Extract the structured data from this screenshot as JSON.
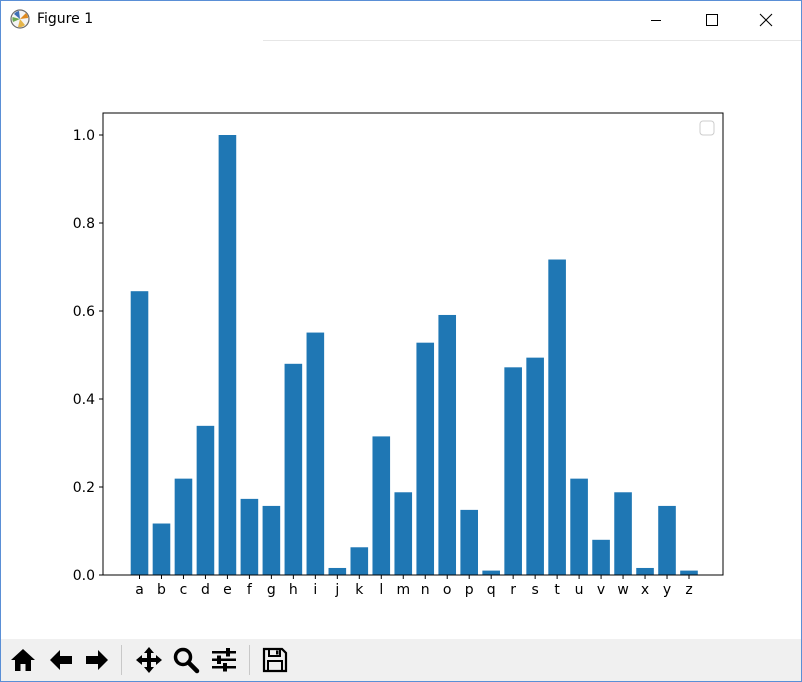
{
  "window": {
    "title": "Figure 1",
    "app_icon": "matplotlib-logo-icon",
    "controls": [
      "minimize-icon",
      "maximize-icon",
      "close-icon"
    ]
  },
  "toolbar": {
    "buttons": [
      {
        "name": "home-button",
        "icon": "home-icon"
      },
      {
        "name": "back-button",
        "icon": "arrow-left-icon"
      },
      {
        "name": "forward-button",
        "icon": "arrow-right-icon"
      },
      {
        "name": "pan-button",
        "icon": "move-arrows-icon"
      },
      {
        "name": "zoom-button",
        "icon": "magnifier-icon"
      },
      {
        "name": "configure-subplots-button",
        "icon": "sliders-icon"
      },
      {
        "name": "save-button",
        "icon": "floppy-disk-icon"
      }
    ]
  },
  "chart_data": {
    "type": "bar",
    "title": "",
    "xlabel": "",
    "ylabel": "",
    "categories": [
      "a",
      "b",
      "c",
      "d",
      "e",
      "f",
      "g",
      "h",
      "i",
      "j",
      "k",
      "l",
      "m",
      "n",
      "o",
      "p",
      "q",
      "r",
      "s",
      "t",
      "u",
      "v",
      "w",
      "x",
      "y",
      "z"
    ],
    "values": [
      0.645,
      0.117,
      0.219,
      0.339,
      1.0,
      0.173,
      0.157,
      0.48,
      0.551,
      0.016,
      0.063,
      0.315,
      0.188,
      0.528,
      0.591,
      0.148,
      0.01,
      0.472,
      0.494,
      0.717,
      0.219,
      0.08,
      0.188,
      0.016,
      0.157,
      0.01
    ],
    "ylim": [
      0,
      1.05
    ],
    "yticks": [
      0.0,
      0.2,
      0.4,
      0.6,
      0.8,
      1.0
    ],
    "ytick_labels": [
      "0.0",
      "0.2",
      "0.4",
      "0.6",
      "0.8",
      "1.0"
    ],
    "bar_color": "#1f77b4",
    "grid": false,
    "legend": {
      "placement": "upper right",
      "entries": []
    }
  }
}
